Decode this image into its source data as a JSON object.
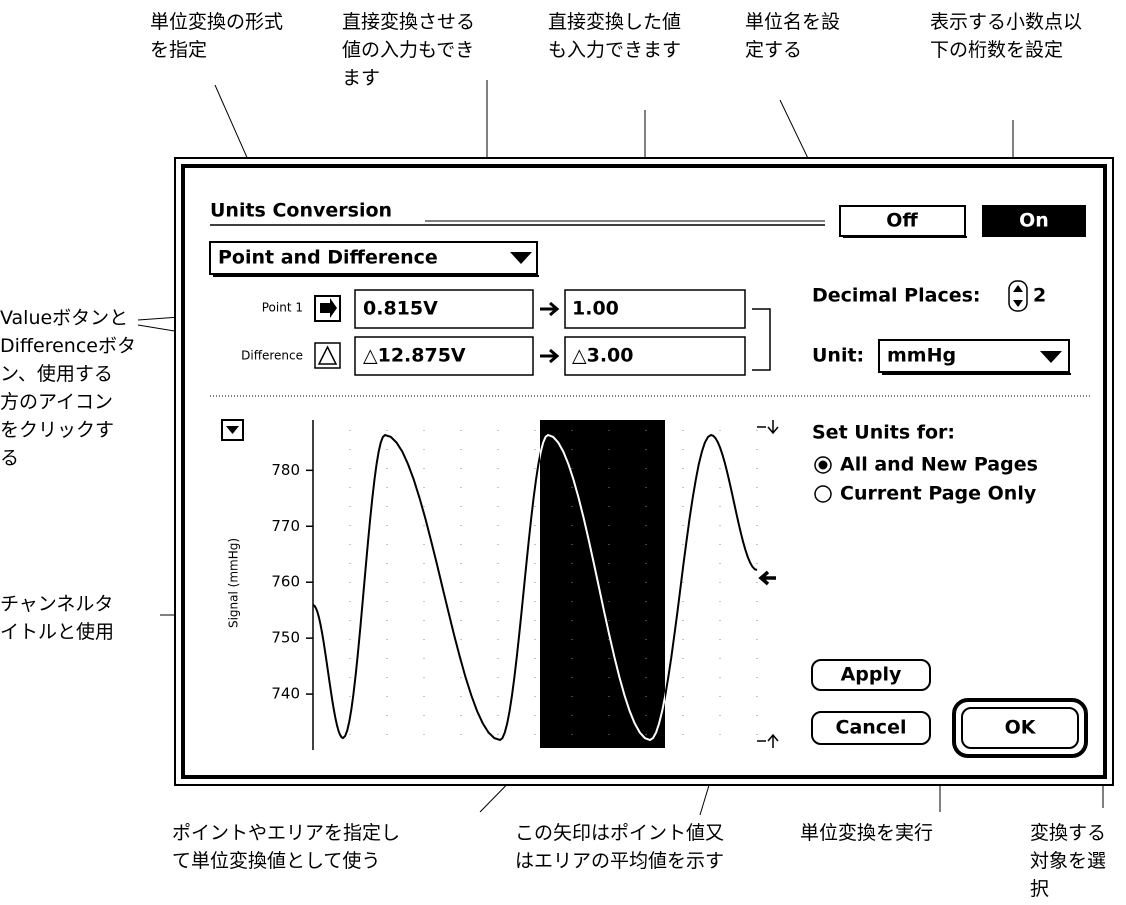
{
  "annotations": {
    "top": [
      {
        "lines": [
          "単位変換の形式",
          "を指定"
        ]
      },
      {
        "lines": [
          "直接変換させる",
          "値の入力もでき",
          "ます"
        ]
      },
      {
        "lines": [
          "直接変換した値",
          "も入力できます"
        ]
      },
      {
        "lines": [
          "単位名を設",
          "定する"
        ]
      },
      {
        "lines": [
          "表示する小数点以",
          "下の桁数を設定"
        ]
      }
    ],
    "left": [
      {
        "lines": [
          "Valueボタンと",
          "Differenceボタ",
          "ン、使用する",
          "方のアイコン",
          "をクリックす",
          "る"
        ]
      },
      {
        "lines": [
          "チャンネルタ",
          "イトルと使用"
        ]
      }
    ],
    "bottom": [
      {
        "lines": [
          "ポイントやエリアを指定し",
          "て単位変換値として使う"
        ]
      },
      {
        "lines": [
          "この矢印はポイント値又",
          "はエリアの平均値を示す"
        ]
      },
      {
        "lines": [
          "単位変換を実行"
        ]
      },
      {
        "lines": [
          "変換する",
          "対象を選",
          "択"
        ]
      }
    ]
  },
  "dialog": {
    "title": "Units Conversion",
    "off_button": "Off",
    "on_button": "On",
    "mode_popup": "Point and Difference",
    "point_label": "Point 1",
    "point_value": "0.815V",
    "point_converted": "1.00",
    "difference_label": "Difference",
    "difference_value": "△12.875V",
    "difference_converted": "△3.00",
    "decimal_places_label": "Decimal Places:",
    "decimal_places_value": "2",
    "unit_label": "Unit:",
    "unit_value": "mmHg",
    "set_units_label": "Set Units for:",
    "radio_all": "All and New Pages",
    "radio_current": "Current Page Only",
    "apply_button": "Apply",
    "cancel_button": "Cancel",
    "ok_button": "OK"
  },
  "plot": {
    "ylabel": "Signal (mmHg)",
    "ylim": [
      730,
      789
    ],
    "yticks": [
      780,
      770,
      760,
      750,
      740
    ]
  }
}
